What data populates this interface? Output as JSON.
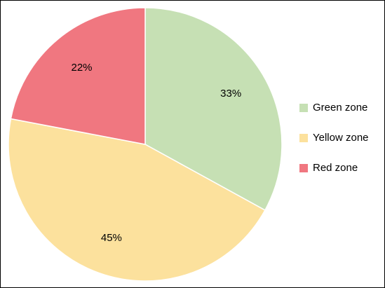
{
  "chart_data": {
    "type": "pie",
    "title": "",
    "legend_position": "right",
    "categories": [
      "Green zone",
      "Yellow zone",
      "Red zone"
    ],
    "values": [
      33,
      45,
      22
    ],
    "labels": [
      "33%",
      "45%",
      "22%"
    ],
    "colors": [
      "#c6e0b4",
      "#fce19d",
      "#f07780"
    ],
    "start": "12 o'clock",
    "direction": "clockwise"
  }
}
